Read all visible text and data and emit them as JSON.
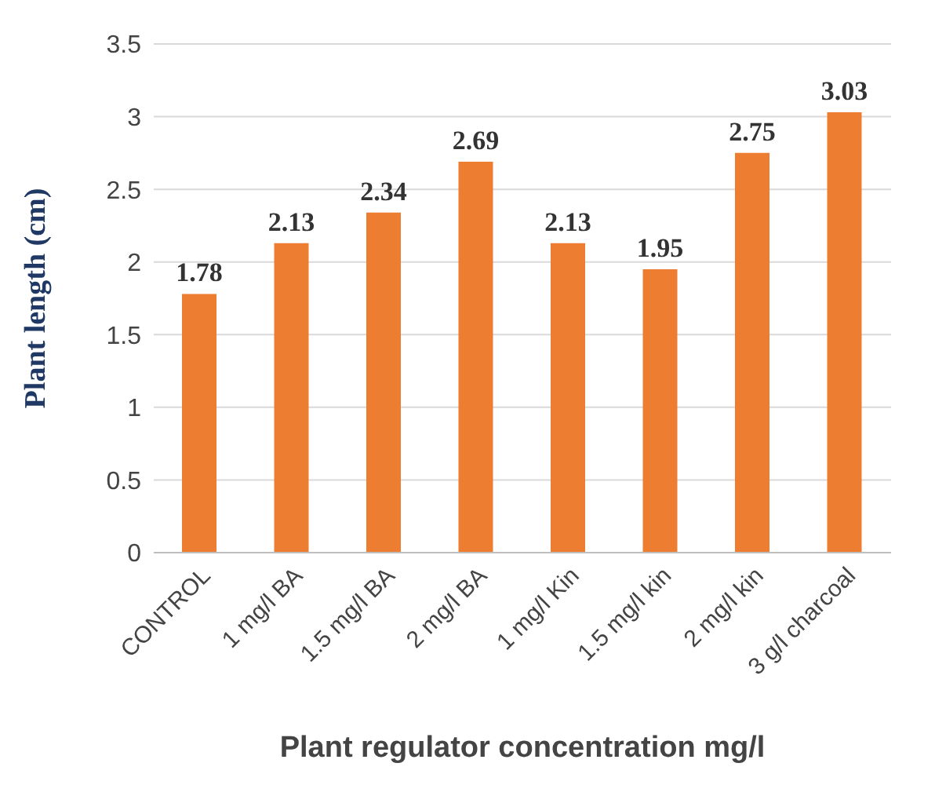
{
  "chart_data": {
    "type": "bar",
    "xlabel": "Plant regulator concentration mg/l",
    "ylabel": "Plant length   (cm)",
    "categories": [
      "CONTROL",
      "1 mg/l BA",
      "1.5 mg/l BA",
      "2 mg/l BA",
      "1 mg/l Kin",
      "1.5  mg/l kin",
      "2 mg/l kin",
      "3 g/l charcoal"
    ],
    "values": [
      1.78,
      2.13,
      2.34,
      2.69,
      2.13,
      1.95,
      2.75,
      3.03
    ],
    "color": "#ed7d31",
    "ylim": [
      0,
      3.5
    ],
    "yticks": [
      0,
      0.5,
      1,
      1.5,
      2,
      2.5,
      3,
      3.5
    ],
    "grid": "y",
    "data_labels": true
  }
}
